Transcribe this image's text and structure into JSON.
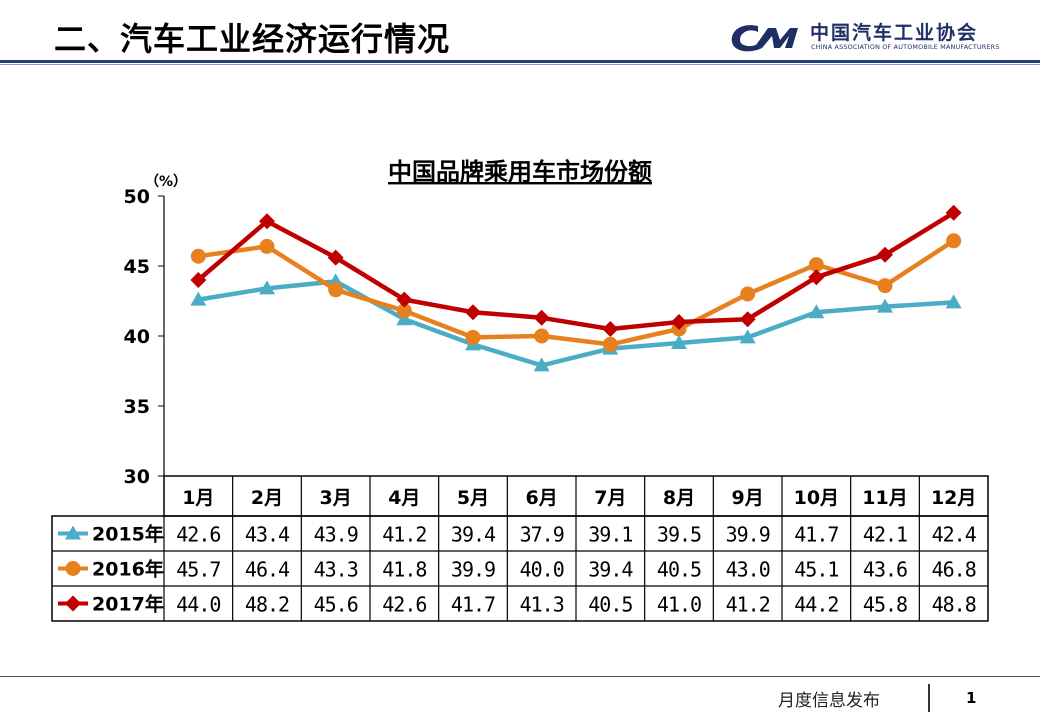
{
  "header": {
    "title": "二、汽车工业经济运行情况",
    "logo_cn": "中国汽车工业协会",
    "logo_en": "CHINA ASSOCIATION OF AUTOMOBILE MANUFACTURERS"
  },
  "footer": {
    "text": "月度信息发布",
    "page": "1"
  },
  "colors": {
    "header_rule": "#1f3d7a",
    "logo": "#1f2f66",
    "s2015": "#4bacc6",
    "s2016": "#e7801e",
    "s2017": "#c00000"
  },
  "chart_data": {
    "type": "line",
    "title": "中国品牌乘用车市场份额",
    "yunit": "（%）",
    "ylim": [
      30,
      50
    ],
    "yticks": [
      30,
      35,
      40,
      45,
      50
    ],
    "grid": false,
    "legend": "data-table rows",
    "categories": [
      "1月",
      "2月",
      "3月",
      "4月",
      "5月",
      "6月",
      "7月",
      "8月",
      "9月",
      "10月",
      "11月",
      "12月"
    ],
    "series": [
      {
        "name": "2015年",
        "marker": "triangle",
        "color": "#4bacc6",
        "values": [
          42.6,
          43.4,
          43.9,
          41.2,
          39.4,
          37.9,
          39.1,
          39.5,
          39.9,
          41.7,
          42.1,
          42.4
        ],
        "labels": [
          "42.6",
          "43.4",
          "43.9",
          "41.2",
          "39.4",
          "37.9",
          "39.1",
          "39.5",
          "39.9",
          "41.7",
          "42.1",
          "42.4"
        ]
      },
      {
        "name": "2016年",
        "marker": "circle",
        "color": "#e7801e",
        "values": [
          45.7,
          46.4,
          43.3,
          41.8,
          39.9,
          40.0,
          39.4,
          40.5,
          43.0,
          45.1,
          43.6,
          46.8
        ],
        "labels": [
          "45.7",
          "46.4",
          "43.3",
          "41.8",
          "39.9",
          "40.0",
          "39.4",
          "40.5",
          "43.0",
          "45.1",
          "43.6",
          "46.8"
        ]
      },
      {
        "name": "2017年",
        "marker": "diamond",
        "color": "#c00000",
        "values": [
          44.0,
          48.2,
          45.6,
          42.6,
          41.7,
          41.3,
          40.5,
          41.0,
          41.2,
          44.2,
          45.8,
          48.8
        ],
        "labels": [
          "44.0",
          "48.2",
          "45.6",
          "42.6",
          "41.7",
          "41.3",
          "40.5",
          "41.0",
          "41.2",
          "44.2",
          "45.8",
          "48.8"
        ]
      }
    ]
  }
}
